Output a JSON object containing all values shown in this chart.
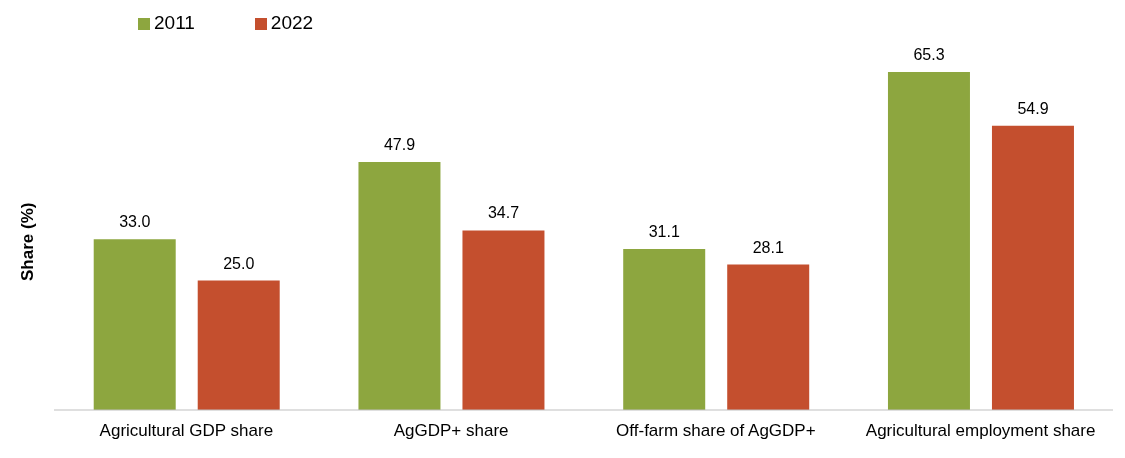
{
  "chart_data": {
    "type": "bar",
    "ylabel": "Share (%)",
    "categories": [
      "Agricultural GDP share",
      "AgGDP+ share",
      "Off-farm share of AgGDP+",
      "Agricultural employment share"
    ],
    "series": [
      {
        "name": "2011",
        "color": "#8da63f",
        "values": [
          33.0,
          47.9,
          31.1,
          65.3
        ],
        "value_labels": [
          "33.0",
          "47.9",
          "31.1",
          "65.3"
        ]
      },
      {
        "name": "2022",
        "color": "#c44f2e",
        "values": [
          25.0,
          34.7,
          28.1,
          54.9
        ],
        "value_labels": [
          "25.0",
          "34.7",
          "28.1",
          "54.9"
        ]
      }
    ],
    "grid": false,
    "legend": "top left"
  }
}
